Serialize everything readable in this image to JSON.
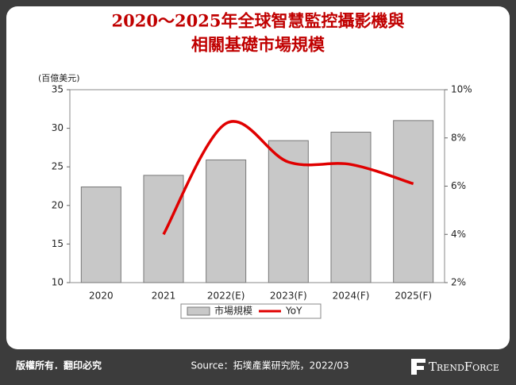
{
  "chart_data": {
    "type": "bar",
    "title": [
      "2020～2025年全球智慧監控攝影機與",
      "相關基礎市場規模"
    ],
    "y_label": "(百億美元)",
    "categories": [
      "2020",
      "2021",
      "2022(E)",
      "2023(F)",
      "2024(F)",
      "2025(F)"
    ],
    "series": [
      {
        "name": "市場規模",
        "type": "bar",
        "color": "#c8c8c8",
        "values": [
          22.4,
          23.9,
          25.9,
          28.4,
          29.5,
          31.0
        ]
      },
      {
        "name": "YoY",
        "type": "line",
        "color": "#e00000",
        "axis": "y2",
        "values": [
          null,
          4.0,
          8.6,
          7.0,
          6.9,
          6.1
        ]
      }
    ],
    "ylim": [
      10,
      35
    ],
    "yticks": [
      10,
      15,
      20,
      25,
      30,
      35
    ],
    "y2lim": [
      2,
      10
    ],
    "y2ticks": [
      {
        "value": 2,
        "label": "2%"
      },
      {
        "value": 4,
        "label": "4%"
      },
      {
        "value": 6,
        "label": "6%"
      },
      {
        "value": 8,
        "label": "8%"
      },
      {
        "value": 10,
        "label": "10%"
      }
    ],
    "legend": "bottom"
  },
  "footer": {
    "copyright": "版權所有．翻印必究",
    "source": "Source：拓墣產業研究院，2022/03",
    "logo": "TrendForce"
  }
}
